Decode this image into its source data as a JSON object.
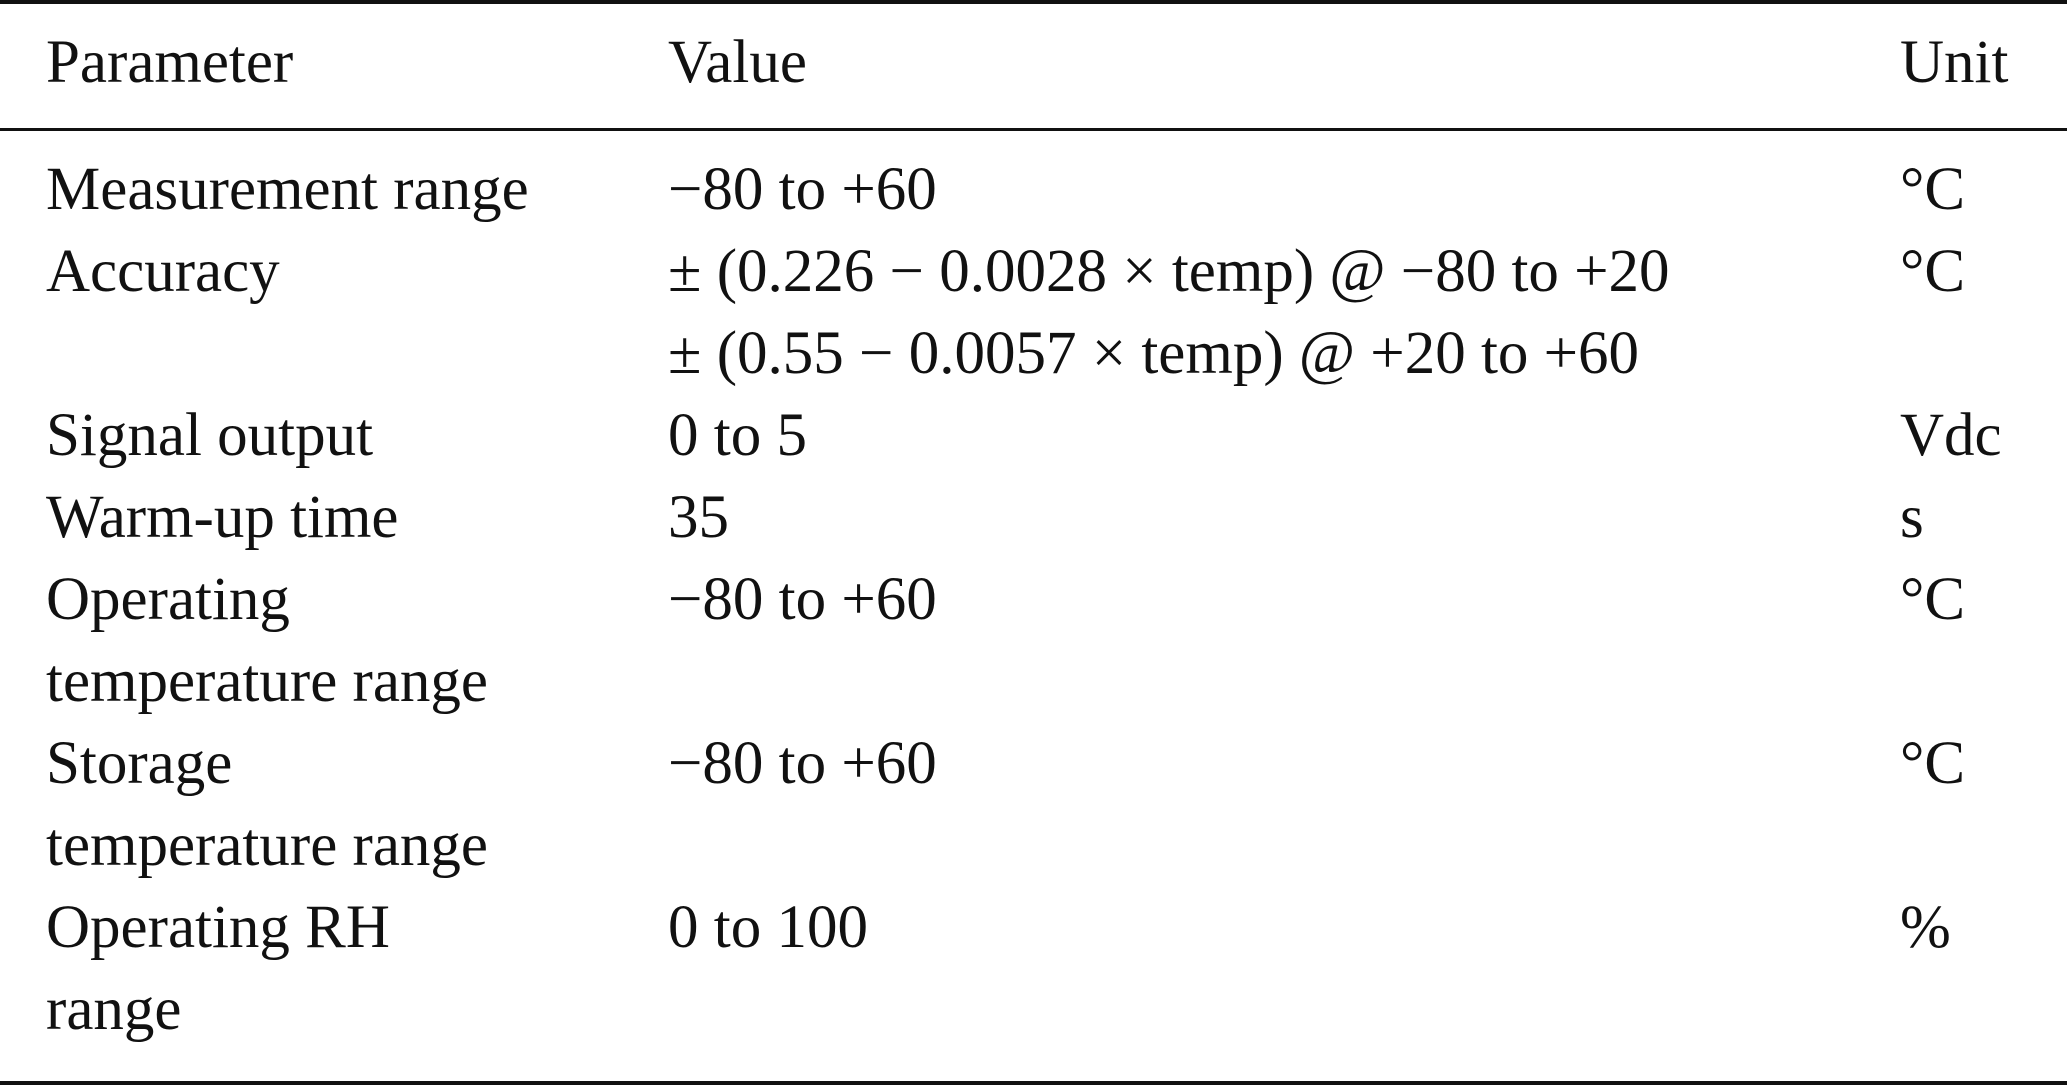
{
  "table": {
    "headers": {
      "parameter": "Parameter",
      "value": "Value",
      "unit": "Unit"
    },
    "rows": [
      {
        "parameter": [
          "Measurement range"
        ],
        "value": [
          "−80 to +60"
        ],
        "unit": "°C"
      },
      {
        "parameter": [
          "Accuracy"
        ],
        "value": [
          "± (0.226 − 0.0028 × temp) @ −80 to +20",
          "± (0.55 − 0.0057 × temp) @ +20 to +60"
        ],
        "unit": "°C"
      },
      {
        "parameter": [
          "Signal output"
        ],
        "value": [
          "0 to 5"
        ],
        "unit": "Vdc"
      },
      {
        "parameter": [
          "Warm-up time"
        ],
        "value": [
          "35"
        ],
        "unit": "s"
      },
      {
        "parameter": [
          "Operating",
          "temperature range"
        ],
        "value": [
          "−80 to +60"
        ],
        "unit": "°C"
      },
      {
        "parameter": [
          "Storage",
          "temperature range"
        ],
        "value": [
          "−80 to +60"
        ],
        "unit": "°C"
      },
      {
        "parameter": [
          "Operating RH",
          "range"
        ],
        "value": [
          "0 to 100"
        ],
        "unit": "%"
      }
    ]
  }
}
